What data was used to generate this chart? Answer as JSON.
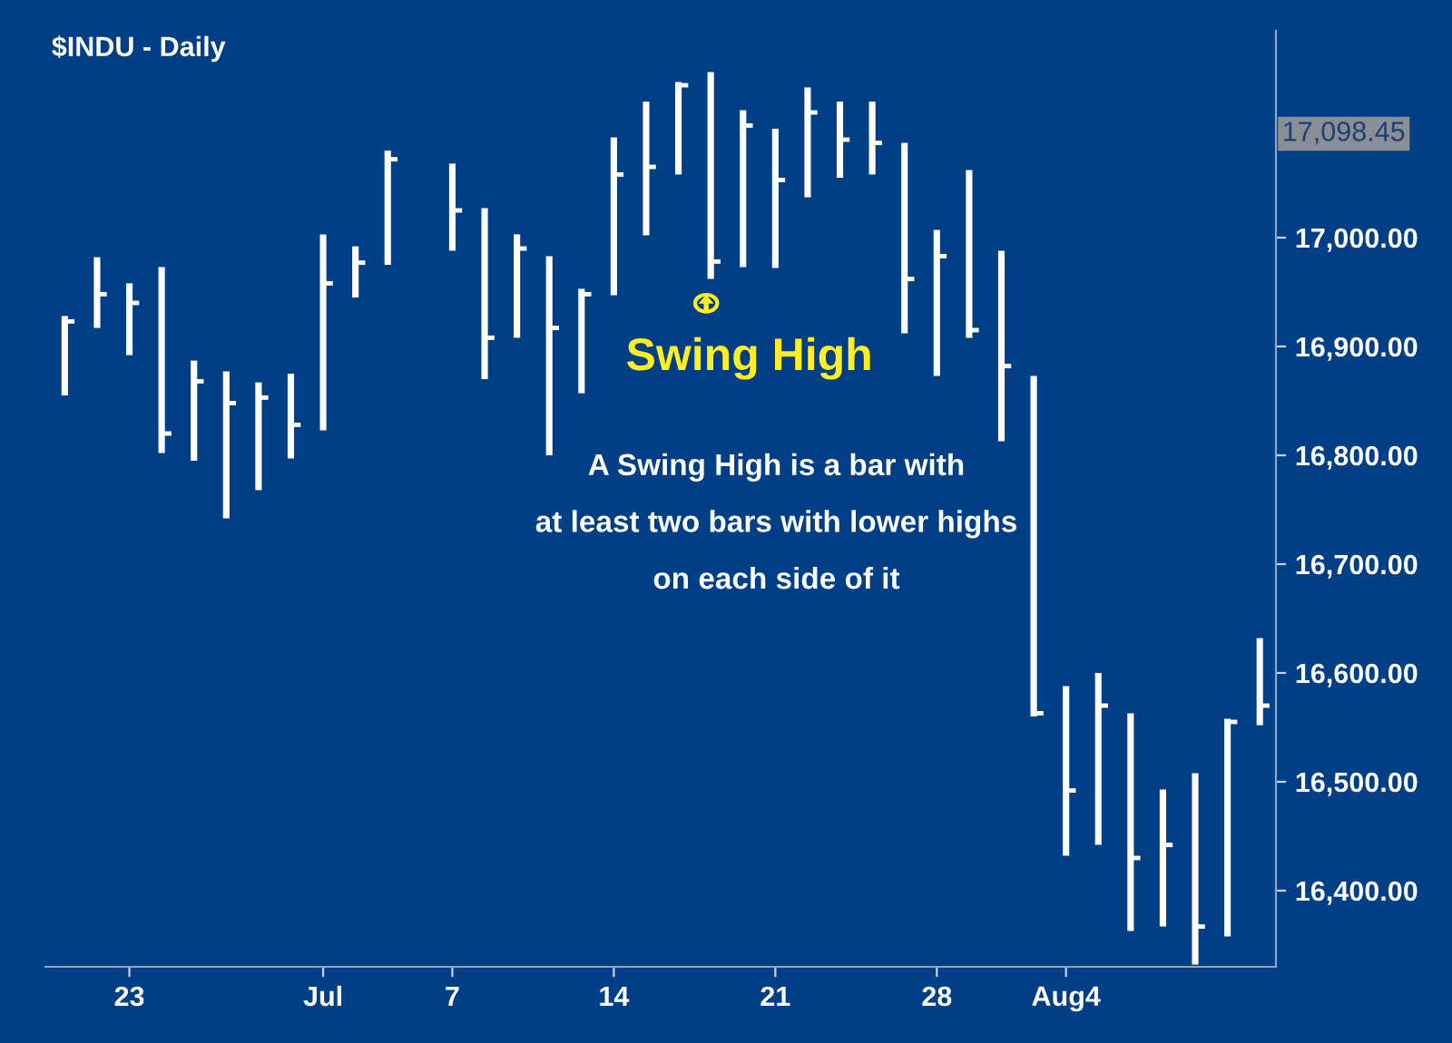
{
  "chart_data": {
    "type": "bar",
    "title": "$INDU - Daily",
    "categories": [
      null,
      null,
      "23",
      null,
      null,
      null,
      null,
      null,
      "Jul",
      null,
      null,
      null,
      "7",
      null,
      null,
      null,
      null,
      "14",
      null,
      null,
      null,
      null,
      "21",
      null,
      null,
      null,
      null,
      "28",
      null,
      null,
      null,
      "Aug4",
      null,
      null,
      null,
      null,
      null,
      null
    ],
    "series": [
      {
        "color": "#ffffff",
        "base": [
          16855,
          16917,
          16892,
          16802,
          16795,
          16742,
          16768,
          16797,
          16823,
          16945,
          16975,
          null,
          16988,
          16870,
          16908,
          16800,
          16857,
          16947,
          17002,
          17058,
          16962,
          16973,
          16972,
          17037,
          17055,
          17058,
          16912,
          16873,
          16908,
          16813,
          16560,
          16432,
          16442,
          16363,
          16367,
          16332,
          16358,
          16552
        ],
        "values": [
          73,
          65,
          66,
          171,
          92,
          135,
          99,
          78,
          180,
          47,
          105,
          null,
          80,
          157,
          95,
          183,
          96,
          145,
          123,
          85,
          190,
          144,
          128,
          101,
          70,
          67,
          175,
          134,
          154,
          175,
          313,
          156,
          158,
          200,
          126,
          176,
          200,
          80
        ]
      },
      {
        "type": "scatter",
        "color": "#ffffff",
        "marker": "square",
        "values": [
          16923,
          16948,
          16940,
          16820,
          16868,
          16848,
          16853,
          16828,
          16958,
          16977,
          17072,
          null,
          17025,
          16908,
          16990,
          16917,
          16948,
          17058,
          17065,
          17140,
          16978,
          17103,
          17053,
          17115,
          17090,
          17087,
          16962,
          16983,
          16915,
          16882,
          16563,
          16492,
          16570,
          16430,
          16442,
          16367,
          16555,
          16570
        ]
      }
    ],
    "ylim": [
      16330,
      17190
    ],
    "yticks": [
      {
        "value": 16400,
        "label": "16,400.00"
      },
      {
        "value": 16500,
        "label": "16,500.00"
      },
      {
        "value": 16600,
        "label": "16,600.00"
      },
      {
        "value": 16700,
        "label": "16,700.00"
      },
      {
        "value": 16800,
        "label": "16,800.00"
      },
      {
        "value": 16900,
        "label": "16,900.00"
      },
      {
        "value": 17000,
        "label": "17,000.00"
      }
    ],
    "grid": false,
    "annotations": [
      "17,098.45",
      "Swing High",
      "A Swing High is a bar with\nat least two bars with lower highs\non each side of it"
    ]
  }
}
